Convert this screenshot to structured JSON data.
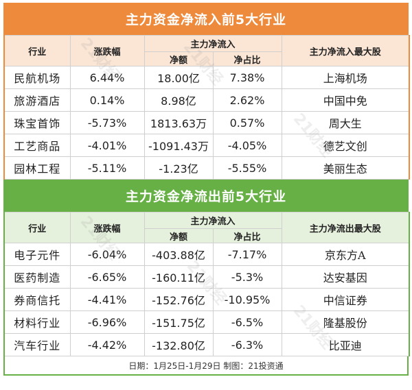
{
  "inflow": {
    "title": "主力资金净流入前5大行业",
    "headers": {
      "industry": "行业",
      "change": "涨跌幅",
      "main_flow": "主力净流入",
      "net_amount": "净额",
      "net_ratio": "净占比",
      "top_stock": "主力净流入最大股"
    },
    "rows": [
      {
        "industry": "民航机场",
        "change": "6.44%",
        "amount": "18.00亿",
        "ratio": "7.38%",
        "stock": "上海机场"
      },
      {
        "industry": "旅游酒店",
        "change": "0.14%",
        "amount": "8.98亿",
        "ratio": "2.62%",
        "stock": "中国中免"
      },
      {
        "industry": "珠宝首饰",
        "change": "-5.73%",
        "amount": "1813.63万",
        "ratio": "0.57%",
        "stock": "周大生"
      },
      {
        "industry": "工艺商品",
        "change": "-4.01%",
        "amount": "-1091.43万",
        "ratio": "-4.05%",
        "stock": "德艺文创"
      },
      {
        "industry": "园林工程",
        "change": "-5.11%",
        "amount": "-1.23亿",
        "ratio": "-5.55%",
        "stock": "美丽生态"
      }
    ]
  },
  "outflow": {
    "title": "主力资金净流出前5大行业",
    "headers": {
      "industry": "行业",
      "change": "涨跌幅",
      "main_flow": "主力净流入",
      "net_amount": "净额",
      "net_ratio": "净占比",
      "top_stock": "主力净流出最大股"
    },
    "rows": [
      {
        "industry": "电子元件",
        "change": "-6.04%",
        "amount": "-403.88亿",
        "ratio": "-7.17%",
        "stock": "京东方A"
      },
      {
        "industry": "医药制造",
        "change": "-6.65%",
        "amount": "-160.11亿",
        "ratio": "-5.3%",
        "stock": "达安基因"
      },
      {
        "industry": "券商信托",
        "change": "-4.41%",
        "amount": "-152.76亿",
        "ratio": "-10.95%",
        "stock": "中信证券"
      },
      {
        "industry": "材料行业",
        "change": "-6.96%",
        "amount": "-151.75亿",
        "ratio": "-6.5%",
        "stock": "隆基股份"
      },
      {
        "industry": "汽车行业",
        "change": "-4.42%",
        "amount": "-132.80亿",
        "ratio": "-6.3%",
        "stock": "比亚迪"
      }
    ]
  },
  "footer": "日期：1月25日-1月29日  制图：21投资通",
  "watermark": "21财经",
  "colors": {
    "inflow_accent": "#ee8a3c",
    "outflow_accent": "#66b046"
  }
}
